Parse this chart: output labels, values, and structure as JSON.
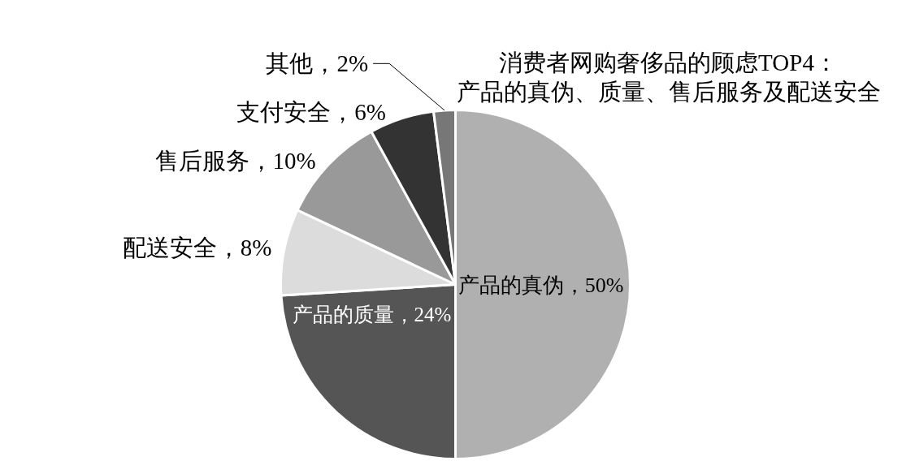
{
  "chart_data": {
    "type": "pie",
    "title": "消费者网购奢侈品的顾虑TOP4：",
    "subtitle": "产品的真伪、质量、售后服务及配送安全",
    "categories": [
      "产品的真伪",
      "产品的质量",
      "配送安全",
      "售后服务",
      "支付安全",
      "其他"
    ],
    "values": [
      50,
      24,
      8,
      10,
      6,
      2
    ],
    "value_labels": [
      "50%",
      "24%",
      "8%",
      "10%",
      "6%",
      "2%"
    ],
    "colors": [
      "#b0b0b0",
      "#555555",
      "#dcdcdc",
      "#999999",
      "#333333",
      "#777777"
    ]
  }
}
